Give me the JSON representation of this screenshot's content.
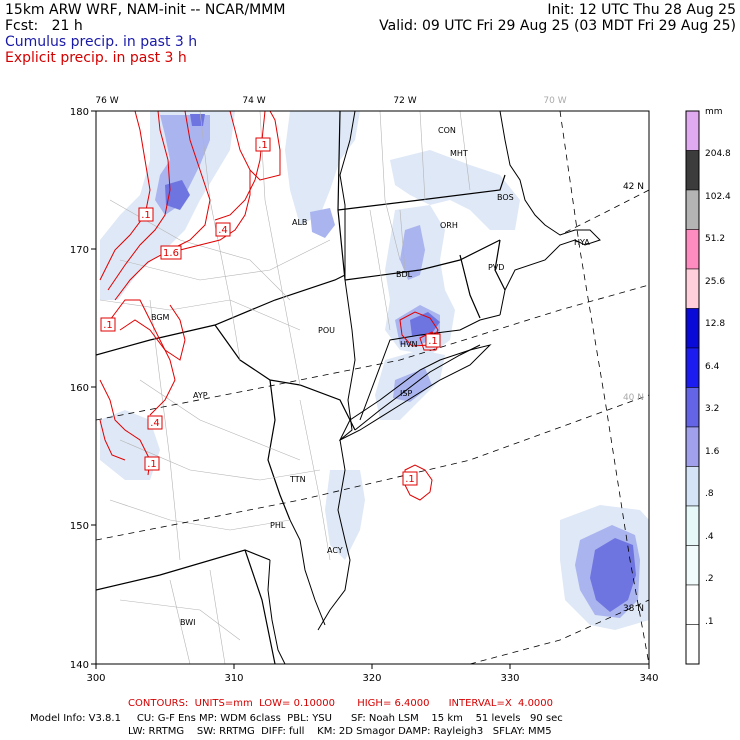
{
  "header": {
    "line1_left": "15km ARW WRF, NAM-init -- NCAR/MMM",
    "line2_left": "Fcst:   21 h",
    "line3": "Cumulus precip. in past 3 h",
    "line4": "Explicit precip. in past 3 h",
    "line1_right": "Init: 12 UTC Thu 28 Aug 25",
    "line2_right": "Valid: 09 UTC Fri 29 Aug 25 (03 MDT Fri 29 Aug 25)",
    "line3_color": "#1a1aa8",
    "line4_color": "#d40000"
  },
  "map": {
    "lon_labels": [
      "76 W",
      "74 W",
      "72 W",
      "70 W"
    ],
    "lat_labels": [
      "42 N",
      "40 N",
      "38 N"
    ],
    "x_ticks": [
      "300",
      "310",
      "320",
      "330",
      "340"
    ],
    "y_ticks": [
      "180",
      "170",
      "160",
      "150",
      "140"
    ],
    "stations": [
      "CON",
      "MHT",
      "BOS",
      "ALB",
      "ORH",
      "PVD",
      "BDL",
      "BGM",
      "POU",
      "HVN",
      "AYP",
      "ISP",
      "TTN",
      "PHL",
      "ACY",
      "BWI",
      "HYA"
    ],
    "contour_labels": [
      ".1",
      ".1",
      ".4",
      "1.6",
      ".1",
      ".1",
      ".4",
      ".1",
      ".1"
    ],
    "shade_color_light": "#dfe8f6",
    "shade_color_mid": "#aab4ee",
    "shade_color_dark": "#6f75e0",
    "contour_color": "#e00000"
  },
  "colorbar": {
    "unit": "mm",
    "labels": [
      "204.8",
      "102.4",
      "51.2",
      "25.6",
      "12.8",
      "6.4",
      "3.2",
      "1.6",
      ".8",
      ".4",
      ".2",
      ".1"
    ],
    "colors": [
      "#dfaaf0",
      "#3c3c3c",
      "#b4b4b4",
      "#ff8cc0",
      "#ffd0dc",
      "#0a0ad8",
      "#1c1cf0",
      "#6464e6",
      "#a0a0ec",
      "#d4e4f6",
      "#e6f8f8",
      "#f2fbfb",
      "#ffffff",
      "#ffffff"
    ]
  },
  "footer": {
    "contours": "CONTOURS:  UNITS=mm  LOW= 0.10000       HIGH= 6.4000      INTERVAL=X  4.0000",
    "model1": "Model Info: V3.8.1     CU: G-F Ens MP: WDM 6class  PBL: YSU      SF: Noah LSM    15 km    51 levels   90 sec",
    "model2": "LW: RRTMG    SW: RRTMG  DIFF: full    KM: 2D Smagor DAMP: Rayleigh3   SFLAY: MM5"
  }
}
